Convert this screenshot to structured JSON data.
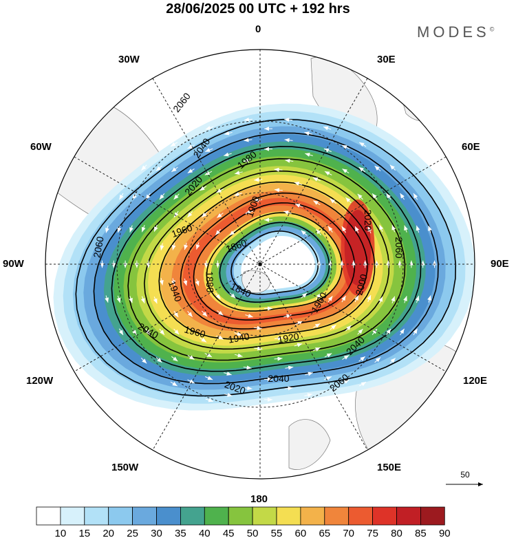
{
  "title": "28/06/2025  00 UTC  + 192 hrs",
  "brand": "MODES",
  "brand_mark": "©",
  "lon_labels": {
    "top": "0",
    "top_right_1": "30E",
    "top_right_2": "60E",
    "right": "90E",
    "bottom_right_1": "120E",
    "bottom_right_2": "150E",
    "bottom": "180",
    "bottom_left_1": "150W",
    "bottom_left_2": "120W",
    "left": "90W",
    "top_left_2": "60W",
    "top_left_1": "30W"
  },
  "contour_labels": [
    "2060",
    "2040",
    "2020",
    "1980",
    "1900",
    "1860",
    "1840",
    "1880",
    "1960",
    "1940",
    "1920",
    "1900",
    "2000",
    "2020",
    "2060",
    "2040",
    "2060",
    "2040",
    "2020",
    "1960",
    "1940",
    "2040",
    "2060"
  ],
  "vector_reference": "50",
  "colorbar": {
    "ticks": [
      "10",
      "15",
      "20",
      "25",
      "30",
      "35",
      "40",
      "45",
      "50",
      "55",
      "60",
      "65",
      "70",
      "75",
      "80",
      "85",
      "90"
    ],
    "colors": [
      "#ffffff",
      "#d7f1fb",
      "#b2e1f7",
      "#8cc9ee",
      "#6aa9de",
      "#4a8fcd",
      "#44a38f",
      "#4fb24d",
      "#86c43e",
      "#c3d947",
      "#f4de52",
      "#f3b24a",
      "#f0853b",
      "#ec5b30",
      "#de3328",
      "#c11f25",
      "#9c1a1f"
    ]
  }
}
